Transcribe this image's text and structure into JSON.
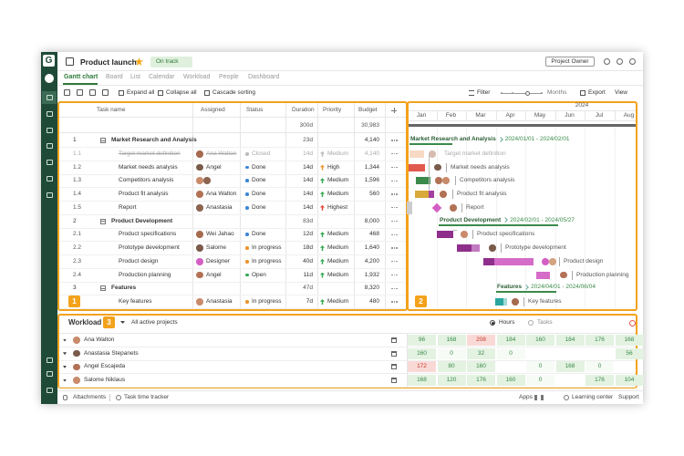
{
  "header": {
    "logo": "G",
    "project": "Product launch",
    "status": "On track",
    "role": "Project Owner"
  },
  "tabs": [
    "Gantt chart",
    "Board",
    "List",
    "Calendar",
    "Workload",
    "People",
    "Dashboard"
  ],
  "toolbar": {
    "expand": "Expand all",
    "collapse": "Collapse all",
    "sorting": "Cascade sorting",
    "filter": "Filter",
    "scale": "Months",
    "export": "Export",
    "view": "View"
  },
  "table": {
    "columns": [
      "Task name",
      "Assigned",
      "Status",
      "Duration",
      "Priority",
      "Budget"
    ],
    "total": {
      "duration": "300d",
      "budget": "30,983"
    },
    "rows": [
      {
        "id": "1",
        "name": "Market Research and Analysis",
        "duration": "23d",
        "budget": "4,140",
        "group": true
      },
      {
        "id": "1.1",
        "name": "Target market definition",
        "assigned": "Ana Walton",
        "status": "Closed",
        "duration": "14d",
        "priority": "Medium",
        "budget": "4,140"
      },
      {
        "id": "1.2",
        "name": "Market needs analysis",
        "assigned": "Angel",
        "status": "Done",
        "duration": "14d",
        "priority": "High",
        "budget": "1,344"
      },
      {
        "id": "1.3",
        "name": "Competitors analysis",
        "status": "Done",
        "duration": "14d",
        "priority": "Medium",
        "budget": "1,596"
      },
      {
        "id": "1.4",
        "name": "Product fit analysis",
        "assigned": "Ana Walton",
        "status": "Done",
        "duration": "14d",
        "priority": "Medium",
        "budget": "560"
      },
      {
        "id": "1.5",
        "name": "Report",
        "assigned": "Anastasia",
        "status": "Done",
        "duration": "14d",
        "priority": "Highest"
      },
      {
        "id": "2",
        "name": "Product Development",
        "duration": "83d",
        "budget": "8,000",
        "group": true
      },
      {
        "id": "2.1",
        "name": "Product specifications",
        "assigned": "Wei Jahao",
        "status": "Done",
        "duration": "12d",
        "priority": "Medium",
        "budget": "468"
      },
      {
        "id": "2.2",
        "name": "Prototype development",
        "assigned": "Salome",
        "status": "In progress",
        "duration": "18d",
        "priority": "Medium",
        "budget": "1,640"
      },
      {
        "id": "2.3",
        "name": "Product design",
        "assigned": "Designer",
        "status": "In progress",
        "duration": "40d",
        "priority": "Medium",
        "budget": "4,200"
      },
      {
        "id": "2.4",
        "name": "Production planning",
        "assigned": "Angel",
        "status": "Open",
        "duration": "11d",
        "priority": "Medium",
        "budget": "1,932"
      },
      {
        "id": "3",
        "name": "Features",
        "duration": "47d",
        "budget": "8,320",
        "group": true
      },
      {
        "name": "Key features",
        "assigned": "Anastasia",
        "status": "In progress",
        "duration": "7d",
        "priority": "Medium",
        "budget": "480"
      }
    ]
  },
  "gantt": {
    "year": "2024",
    "months": [
      "Jan",
      "Feb",
      "Mar",
      "Apr",
      "May",
      "Jun",
      "Jul",
      "Aug"
    ],
    "dates": [
      "2024/01/01 - 2024/02/01",
      "2024/02/01 - 2024/05/27",
      "2024/04/01 - 2024/06/04"
    ]
  },
  "workload": {
    "title": "Workload",
    "filter": "All active projects",
    "options": [
      "Hours",
      "Tasks"
    ],
    "people": [
      {
        "name": "Ana Walton",
        "hours": [
          96,
          168,
          208,
          184,
          160,
          184,
          176,
          168
        ],
        "over": [
          2
        ]
      },
      {
        "name": "Anastasia Stepanets",
        "hours": [
          160,
          0,
          32,
          0,
          null,
          null,
          null,
          56
        ],
        "over": []
      },
      {
        "name": "Angel Escajeda",
        "hours": [
          172,
          80,
          160,
          null,
          0,
          168,
          0,
          null
        ],
        "over": [
          0
        ]
      },
      {
        "name": "Salome Niklaus",
        "hours": [
          168,
          120,
          176,
          160,
          0,
          null,
          176,
          104
        ],
        "over": []
      }
    ]
  },
  "footer": {
    "left": [
      "Attachments",
      "Task time tracker"
    ],
    "right": [
      "Apps",
      "Learning center",
      "Support"
    ]
  },
  "badges": [
    "1",
    "2",
    "3"
  ]
}
